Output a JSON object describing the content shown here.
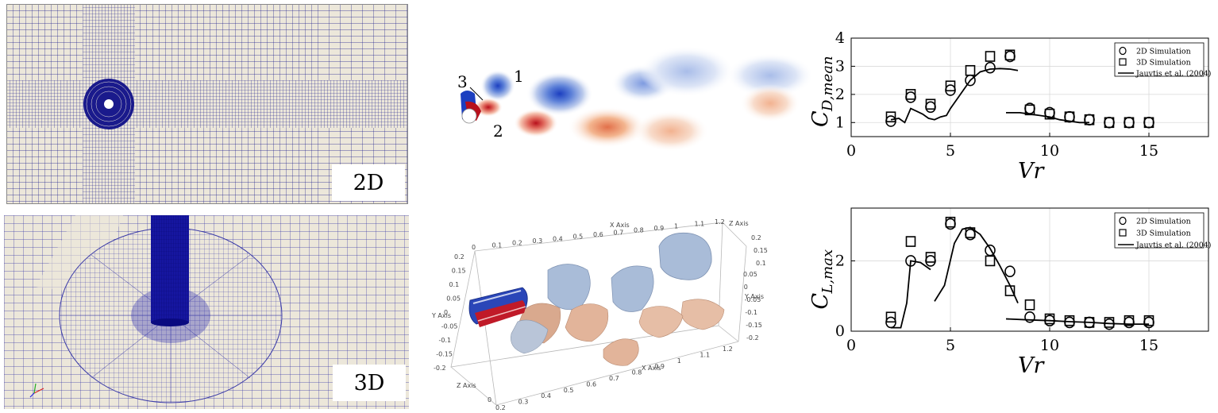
{
  "mesh2d": {
    "label": "2D"
  },
  "mesh3d": {
    "label": "3D"
  },
  "vorticity": {
    "annotations": [
      "1",
      "2",
      "3"
    ]
  },
  "iso3d": {
    "x_axis_title": "X Axis",
    "y_axis_title": "Y Axis",
    "z_axis_title": "Z Axis",
    "x_ticks_top": [
      "0",
      "0.1",
      "0.2",
      "0.3",
      "0.4",
      "0.5",
      "0.6",
      "0.7",
      "0.8",
      "0.9",
      "1",
      "1.1",
      "1.2"
    ],
    "x_ticks_bottom": [
      "0.2",
      "0.3",
      "0.4",
      "0.5",
      "0.6",
      "0.7",
      "0.8",
      "0.9",
      "1",
      "1.1",
      "1.2"
    ],
    "y_ticks_left": [
      "0.2",
      "0.15",
      "0.1",
      "0.05",
      "0",
      "-0.05",
      "-0.1",
      "-0.15",
      "-0.2"
    ],
    "y_ticks_right": [
      "0.05",
      "0",
      "-0.05",
      "-0.1",
      "-0.15",
      "-0.2"
    ],
    "z_ticks_right": [
      "0.2",
      "0.15",
      "0.1"
    ],
    "z_ticks_bottom": [
      "0"
    ]
  },
  "colors": {
    "mesh_line": "#1a1a8c",
    "mesh_bg": "#ece7da",
    "vort_red": "#b8101c",
    "vort_blue": "#1c3fc0",
    "iso_blue": "#9fb5d4",
    "iso_orange": "#e3b79c"
  },
  "chart_data": [
    {
      "type": "scatter",
      "title": "",
      "xlabel": "Vr",
      "ylabel": "C_{D,mean}",
      "ylabel_main": "C",
      "ylabel_sub": "D,mean",
      "xlim": [
        0,
        18
      ],
      "ylim": [
        0.5,
        4
      ],
      "xticks": [
        "0",
        "5",
        "10",
        "15"
      ],
      "yticks": [
        "1",
        "2",
        "3",
        "4"
      ],
      "grid": true,
      "legend": "top-right",
      "series": [
        {
          "name": "2D Simulation",
          "marker": "circle",
          "x": [
            2,
            3,
            4,
            5,
            6,
            7,
            8,
            9,
            10,
            11,
            12,
            13,
            14,
            15
          ],
          "y": [
            1.05,
            1.9,
            1.55,
            2.15,
            2.5,
            2.95,
            3.35,
            1.5,
            1.35,
            1.2,
            1.1,
            1.0,
            1.0,
            1.0
          ]
        },
        {
          "name": "3D Simulation",
          "marker": "square",
          "x": [
            2,
            3,
            4,
            5,
            6,
            7,
            8,
            9,
            10,
            11,
            12,
            13,
            14,
            15
          ],
          "y": [
            1.2,
            2.0,
            1.65,
            2.3,
            2.85,
            3.35,
            3.4,
            1.45,
            1.3,
            1.2,
            1.1,
            1.0,
            1.0,
            1.0
          ]
        },
        {
          "name": "Jauvtis et al. (2004)",
          "marker": "line",
          "segments": [
            {
              "x": [
                2.0,
                2.4,
                2.7,
                3.0,
                3.3,
                3.6,
                3.9,
                4.2,
                4.5,
                4.8,
                5.0,
                5.5,
                6.0,
                6.5,
                7.0,
                7.5,
                8.0,
                8.4
              ],
              "y": [
                1.1,
                1.15,
                1.0,
                1.5,
                1.4,
                1.3,
                1.15,
                1.1,
                1.2,
                1.25,
                1.5,
                2.0,
                2.5,
                2.8,
                2.9,
                2.92,
                2.9,
                2.85
              ]
            },
            {
              "x": [
                7.8,
                8.5,
                9.0,
                9.5,
                10.0,
                10.5,
                11.0,
                11.5,
                12.0
              ],
              "y": [
                1.35,
                1.35,
                1.3,
                1.25,
                1.2,
                1.1,
                1.05,
                1.0,
                1.0
              ]
            }
          ]
        }
      ]
    },
    {
      "type": "scatter",
      "title": "",
      "xlabel": "Vr",
      "ylabel": "C_{L,max}",
      "ylabel_main": "C",
      "ylabel_sub": "L,max",
      "xlim": [
        0,
        18
      ],
      "ylim": [
        0,
        3.5
      ],
      "xticks": [
        "0",
        "5",
        "10",
        "15"
      ],
      "yticks": [
        "0",
        "2"
      ],
      "grid": true,
      "legend": "top-right",
      "series": [
        {
          "name": "2D Simulation",
          "marker": "circle",
          "x": [
            2,
            3,
            4,
            5,
            6,
            7,
            8,
            9,
            10,
            11,
            12,
            13,
            14,
            15
          ],
          "y": [
            0.25,
            2.0,
            2.0,
            3.05,
            2.75,
            2.3,
            1.7,
            0.4,
            0.3,
            0.25,
            0.25,
            0.2,
            0.25,
            0.25
          ]
        },
        {
          "name": "3D Simulation",
          "marker": "square",
          "x": [
            2,
            3,
            4,
            5,
            6,
            7,
            8,
            9,
            10,
            11,
            12,
            13,
            14,
            15
          ],
          "y": [
            0.4,
            2.55,
            2.1,
            3.1,
            2.8,
            2.0,
            1.15,
            0.75,
            0.35,
            0.3,
            0.25,
            0.25,
            0.3,
            0.3
          ]
        },
        {
          "name": "Jauvtis et al. (2004)",
          "marker": "line",
          "segments": [
            {
              "x": [
                2.0,
                2.5,
                2.8,
                3.0,
                3.5,
                4.0
              ],
              "y": [
                0.1,
                0.1,
                0.8,
                2.0,
                1.95,
                1.75
              ]
            },
            {
              "x": [
                4.2,
                4.7,
                5.2,
                5.6,
                6.0,
                6.5,
                7.0,
                7.5,
                8.0,
                8.4
              ],
              "y": [
                0.85,
                1.3,
                2.5,
                2.9,
                2.95,
                2.75,
                2.35,
                1.85,
                1.3,
                0.8
              ]
            },
            {
              "x": [
                7.8,
                9.0,
                10.0,
                11.0,
                12.0,
                13.0,
                14.0,
                15.0
              ],
              "y": [
                0.35,
                0.32,
                0.3,
                0.27,
                0.25,
                0.22,
                0.2,
                0.2
              ]
            }
          ]
        }
      ]
    }
  ]
}
